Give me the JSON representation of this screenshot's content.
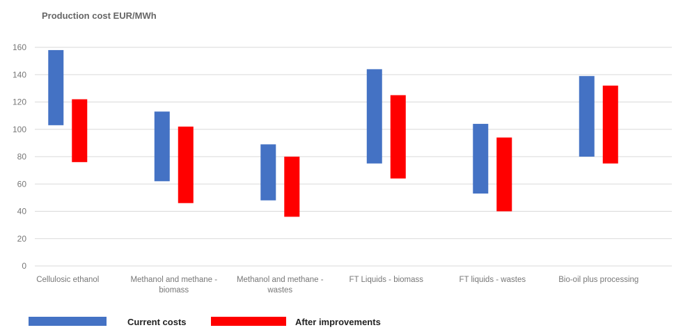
{
  "chart_data": {
    "type": "bar",
    "title": "Production cost EUR/MWh",
    "ylim": [
      0,
      160
    ],
    "yticks": [
      0,
      20,
      40,
      60,
      80,
      100,
      120,
      140,
      160
    ],
    "grid": true,
    "legend_placement": "bottom-left",
    "categories": [
      [
        "Cellulosic ethanol"
      ],
      [
        "Methanol and methane -",
        "biomass"
      ],
      [
        "Methanol and methane -",
        "wastes"
      ],
      [
        "FT Liquids - biomass"
      ],
      [
        "FT liquids - wastes"
      ],
      [
        "Bio-oil plus processing"
      ]
    ],
    "series": [
      {
        "name": "Current costs",
        "color": "#4472c4",
        "ranges": [
          [
            103,
            158
          ],
          [
            62,
            113
          ],
          [
            48,
            89
          ],
          [
            75,
            144
          ],
          [
            53,
            104
          ],
          [
            80,
            139
          ]
        ]
      },
      {
        "name": "After improvements",
        "color": "#ff0000",
        "ranges": [
          [
            76,
            122
          ],
          [
            46,
            102
          ],
          [
            36,
            80
          ],
          [
            64,
            125
          ],
          [
            40,
            94
          ],
          [
            75,
            132
          ]
        ]
      }
    ]
  }
}
